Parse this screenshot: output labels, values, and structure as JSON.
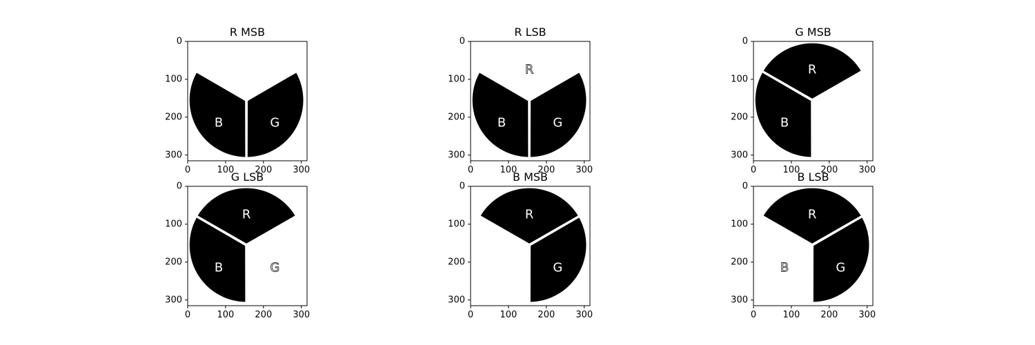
{
  "chart_data": {
    "type": "image-grid",
    "layout": {
      "rows": 2,
      "cols": 3
    },
    "xlim": [
      0,
      315
    ],
    "ylim": [
      315,
      0
    ],
    "xticks": [
      0,
      100,
      200,
      300
    ],
    "yticks": [
      0,
      100,
      200,
      300
    ],
    "circle": {
      "cx": 155,
      "cy": 155,
      "r": 150
    },
    "label_positions": {
      "R": {
        "x": 155,
        "y": 75
      },
      "B": {
        "x": 82,
        "y": 215
      },
      "G": {
        "x": 230,
        "y": 215
      }
    },
    "panels": [
      {
        "title": "R MSB",
        "filled": [
          "B",
          "G"
        ],
        "labels": [
          {
            "text": "B",
            "style": "solid"
          },
          {
            "text": "G",
            "style": "solid"
          }
        ]
      },
      {
        "title": "R LSB",
        "filled": [
          "B",
          "G"
        ],
        "labels": [
          {
            "text": "R",
            "style": "ghost"
          },
          {
            "text": "B",
            "style": "solid"
          },
          {
            "text": "G",
            "style": "solid"
          }
        ]
      },
      {
        "title": "G MSB",
        "filled": [
          "R",
          "B"
        ],
        "labels": [
          {
            "text": "R",
            "style": "solid"
          },
          {
            "text": "B",
            "style": "solid"
          }
        ]
      },
      {
        "title": "G LSB",
        "filled": [
          "R",
          "B"
        ],
        "labels": [
          {
            "text": "R",
            "style": "solid"
          },
          {
            "text": "B",
            "style": "solid"
          },
          {
            "text": "G",
            "style": "ghost"
          }
        ]
      },
      {
        "title": "B MSB",
        "filled": [
          "R",
          "G"
        ],
        "labels": [
          {
            "text": "R",
            "style": "solid"
          },
          {
            "text": "G",
            "style": "solid"
          }
        ]
      },
      {
        "title": "B LSB",
        "filled": [
          "R",
          "G"
        ],
        "labels": [
          {
            "text": "R",
            "style": "solid"
          },
          {
            "text": "B",
            "style": "ghost"
          },
          {
            "text": "G",
            "style": "solid"
          }
        ]
      }
    ]
  }
}
